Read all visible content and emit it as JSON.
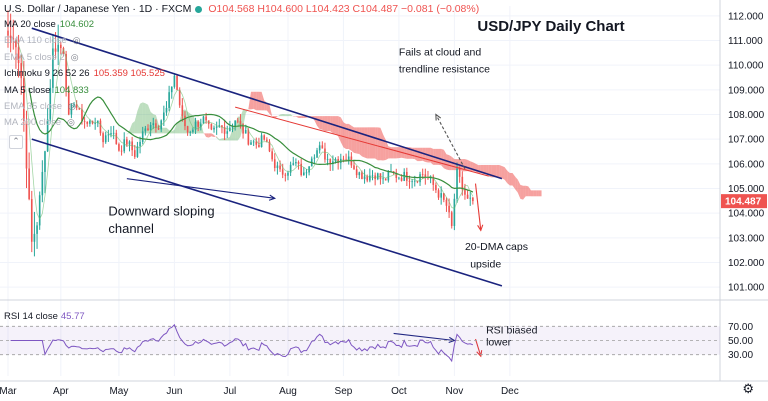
{
  "header": {
    "symbol": "U.S. Dollar / Japanese Yen · 1D · FXCM",
    "ohlc": "O104.568 H104.600 L104.423 C104.487 −0.081 (−0.08%)"
  },
  "indicators": [
    {
      "label": "MA 20 close",
      "value": "104.602",
      "value_color": "#388e3c",
      "faint": false
    },
    {
      "label": "EMA 110 close",
      "value": "",
      "value_color": "",
      "faint": true
    },
    {
      "label": "EMA 5 close 2",
      "value": "",
      "value_color": "",
      "faint": true
    },
    {
      "label": "Ichimoku 9 26 52 26",
      "value": "105.359  105.525",
      "value_color": "#e53935",
      "faint": false
    },
    {
      "label": "MA 5 close",
      "value": "104.833",
      "value_color": "#388e3c",
      "faint": false
    },
    {
      "label": "EMA 35 close",
      "value": "",
      "value_color": "",
      "faint": true
    },
    {
      "label": "MA 200 close",
      "value": "",
      "value_color": "",
      "faint": true
    }
  ],
  "rsi_label": "RSI 14 close",
  "rsi_value": "45.77",
  "icons": {
    "collapse": "chevron-down-icon",
    "settings": "gear-icon",
    "visibility": "eye-icon"
  },
  "chart_data": {
    "type": "candlestick",
    "title": "USD/JPY Daily Chart",
    "y_axis": {
      "min": 100.6,
      "max": 112.4,
      "ticks": [
        101.0,
        102.0,
        103.0,
        104.0,
        105.0,
        106.0,
        107.0,
        108.0,
        109.0,
        110.0,
        111.0,
        112.0
      ],
      "last_price": "104.487"
    },
    "x_axis": {
      "labels": [
        "Mar",
        "Apr",
        "May",
        "Jun",
        "Jul",
        "Aug",
        "Sep",
        "Oct",
        "Nov",
        "Dec"
      ],
      "t_range": [
        0,
        276
      ],
      "label_t": [
        0,
        20,
        42,
        63,
        84,
        106,
        127,
        148,
        169,
        190
      ]
    },
    "price_anchors": [
      [
        0,
        111.2
      ],
      [
        3,
        110.9
      ],
      [
        5,
        109.5
      ],
      [
        7,
        106.0
      ],
      [
        9,
        102.8
      ],
      [
        11,
        103.6
      ],
      [
        13,
        105.6
      ],
      [
        15,
        107.8
      ],
      [
        17,
        110.6
      ],
      [
        19,
        110.8
      ],
      [
        21,
        110.6
      ],
      [
        23,
        107.8
      ],
      [
        25,
        108.6
      ],
      [
        27,
        108.0
      ],
      [
        30,
        107.6
      ],
      [
        33,
        107.8
      ],
      [
        36,
        107.0
      ],
      [
        39,
        107.4
      ],
      [
        42,
        106.6
      ],
      [
        45,
        106.9
      ],
      [
        48,
        106.4
      ],
      [
        51,
        107.2
      ],
      [
        54,
        107.7
      ],
      [
        57,
        107.6
      ],
      [
        60,
        108.2
      ],
      [
        62,
        109.2
      ],
      [
        63,
        109.6
      ],
      [
        64,
        109.0
      ],
      [
        66,
        107.8
      ],
      [
        68,
        107.3
      ],
      [
        71,
        107.6
      ],
      [
        74,
        107.8
      ],
      [
        77,
        107.2
      ],
      [
        80,
        107.5
      ],
      [
        83,
        107.4
      ],
      [
        86,
        107.8
      ],
      [
        88,
        107.5
      ],
      [
        91,
        107.0
      ],
      [
        94,
        106.8
      ],
      [
        97,
        107.0
      ],
      [
        100,
        106.2
      ],
      [
        103,
        105.6
      ],
      [
        106,
        105.8
      ],
      [
        109,
        106.0
      ],
      [
        112,
        105.5
      ],
      [
        115,
        106.4
      ],
      [
        118,
        106.6
      ],
      [
        121,
        106.2
      ],
      [
        124,
        106.2
      ],
      [
        127,
        106.3
      ],
      [
        130,
        106.1
      ],
      [
        133,
        105.6
      ],
      [
        136,
        105.5
      ],
      [
        139,
        105.6
      ],
      [
        142,
        105.3
      ],
      [
        145,
        105.6
      ],
      [
        148,
        105.5
      ],
      [
        151,
        105.5
      ],
      [
        154,
        105.4
      ],
      [
        157,
        105.6
      ],
      [
        160,
        105.3
      ],
      [
        163,
        104.8
      ],
      [
        166,
        104.3
      ],
      [
        168,
        103.4
      ],
      [
        169,
        104.6
      ],
      [
        170,
        105.6
      ],
      [
        172,
        105.0
      ],
      [
        174,
        104.5
      ],
      [
        176,
        104.49
      ]
    ],
    "candle_count": 177,
    "series": [
      {
        "name": "MA 20 close",
        "color": "#388e3c",
        "last": 104.602
      },
      {
        "name": "MA 5 close",
        "color": "#388e3c",
        "last": 104.833
      },
      {
        "name": "Ichimoku 9 26 52 26",
        "span_a_last": 105.359,
        "span_b_last": 105.525
      }
    ],
    "trendlines": [
      {
        "name": "upper-channel",
        "color": "#1a237e",
        "from": [
          9,
          111.5
        ],
        "to": [
          187,
          105.4
        ]
      },
      {
        "name": "lower-channel",
        "color": "#1a237e",
        "from": [
          9,
          107.0
        ],
        "to": [
          187,
          101.05
        ]
      },
      {
        "name": "red-resistance",
        "color": "#e53935",
        "from": [
          86,
          108.3
        ],
        "to": [
          182,
          105.5
        ]
      }
    ],
    "annotations": [
      {
        "text": "Fails at cloud and",
        "t": 148,
        "y": 110.4
      },
      {
        "text": "trendline resistance",
        "t": 148,
        "y": 109.7
      },
      {
        "text": "Downward sloping",
        "t": 38,
        "y": 103.9
      },
      {
        "text": "channel",
        "t": 38,
        "y": 103.2
      },
      {
        "text": "20-DMA caps",
        "t": 173,
        "y": 102.5
      },
      {
        "text": "upside",
        "t": 175,
        "y": 101.8
      }
    ],
    "rsi": {
      "name": "RSI 14 close",
      "ylim": [
        0,
        100
      ],
      "ticks": [
        30,
        50,
        70
      ],
      "last": 45.77,
      "annotation": [
        "RSI biased",
        "lower"
      ]
    }
  }
}
